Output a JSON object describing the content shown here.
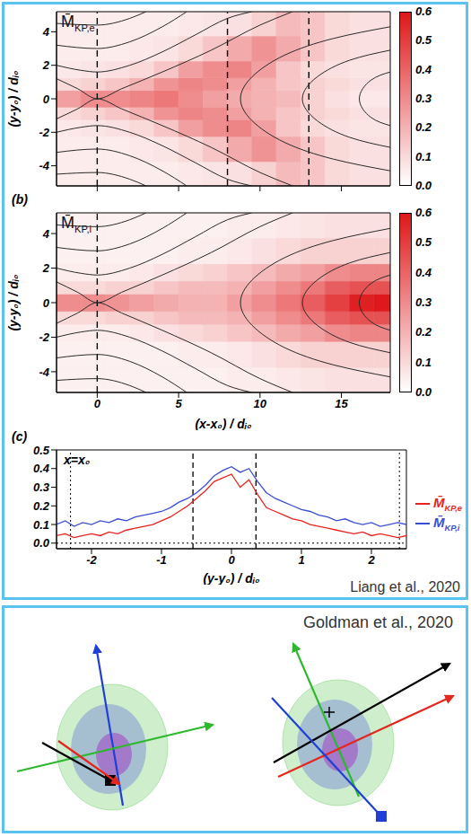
{
  "chart_data": [
    {
      "type": "heatmap",
      "label": "M̄KP,e",
      "y_label": "(y-y₀) / dᵢ₀",
      "tick_labels": "y",
      "xlim": [
        -2.5,
        18
      ],
      "ylim": [
        -5.2,
        5.2
      ],
      "xticks": [
        0,
        5,
        10,
        15
      ],
      "yticks": [
        -4,
        -2,
        0,
        2,
        4
      ],
      "x_bins": [
        -2.5,
        -1,
        0.5,
        2,
        3.5,
        5,
        6.5,
        8,
        9.5,
        11,
        12.5,
        14,
        15.5,
        17,
        18
      ],
      "y_bins": [
        -5.2,
        -3.75,
        -2.25,
        -1.25,
        -0.5,
        0.5,
        1.25,
        2.25,
        3.75,
        5.2
      ],
      "cells": [
        [
          0.05,
          0.05,
          0.05,
          0.05,
          0.05,
          0.06,
          0.07,
          0.08,
          0.12,
          0.18,
          0.15,
          0.1,
          0.08,
          0.08
        ],
        [
          0.05,
          0.05,
          0.05,
          0.06,
          0.07,
          0.1,
          0.15,
          0.22,
          0.28,
          0.22,
          0.15,
          0.1,
          0.08,
          0.08
        ],
        [
          0.06,
          0.07,
          0.08,
          0.1,
          0.15,
          0.25,
          0.3,
          0.32,
          0.25,
          0.15,
          0.1,
          0.08,
          0.07,
          0.07
        ],
        [
          0.1,
          0.12,
          0.15,
          0.2,
          0.28,
          0.32,
          0.3,
          0.25,
          0.2,
          0.15,
          0.12,
          0.1,
          0.08,
          0.08
        ],
        [
          0.25,
          0.3,
          0.3,
          0.32,
          0.35,
          0.3,
          0.25,
          0.22,
          0.2,
          0.18,
          0.12,
          0.08,
          0.06,
          0.06
        ],
        [
          0.1,
          0.12,
          0.15,
          0.2,
          0.28,
          0.32,
          0.3,
          0.25,
          0.2,
          0.15,
          0.12,
          0.1,
          0.08,
          0.08
        ],
        [
          0.06,
          0.07,
          0.08,
          0.1,
          0.15,
          0.25,
          0.3,
          0.32,
          0.25,
          0.15,
          0.1,
          0.08,
          0.07,
          0.07
        ],
        [
          0.05,
          0.05,
          0.05,
          0.06,
          0.07,
          0.1,
          0.15,
          0.22,
          0.28,
          0.22,
          0.15,
          0.1,
          0.08,
          0.08
        ],
        [
          0.05,
          0.05,
          0.05,
          0.05,
          0.05,
          0.06,
          0.07,
          0.08,
          0.12,
          0.18,
          0.15,
          0.1,
          0.08,
          0.08
        ]
      ],
      "colorbar": {
        "range": [
          0,
          0.6
        ],
        "ticks": [
          {
            "value": 0,
            "label": "0.0"
          },
          0.1,
          0.2,
          0.3,
          0.4,
          0.5,
          0.6
        ]
      },
      "dashed_x": [
        0,
        8,
        13
      ],
      "field_lines": [
        {
          "x": [
            -2.5,
            -1.2,
            0,
            1.5,
            4,
            7,
            10,
            12
          ],
          "y": [
            1.2,
            0.6,
            0,
            0.6,
            1.6,
            2.9,
            4.4,
            5.2
          ]
        },
        {
          "x": [
            -2.5,
            -1.2,
            0,
            1.5,
            4,
            7,
            10,
            12
          ],
          "y": [
            -1.2,
            -0.6,
            0,
            -0.6,
            -1.6,
            -2.9,
            -4.4,
            -5.2
          ]
        },
        {
          "x": [
            -2.5,
            -1,
            0,
            2,
            4,
            6,
            8,
            9.5
          ],
          "y": [
            2,
            1.7,
            1.6,
            2,
            2.8,
            3.8,
            4.8,
            5.2
          ]
        },
        {
          "x": [
            -2.5,
            -1,
            0,
            2,
            4,
            6,
            8,
            9.5
          ],
          "y": [
            -2,
            -1.7,
            -1.6,
            -2,
            -2.8,
            -3.8,
            -4.8,
            -5.2
          ]
        },
        {
          "x": [
            -2.5,
            0,
            2,
            4,
            5.5
          ],
          "y": [
            3.2,
            3,
            3.4,
            4.3,
            5.2
          ]
        },
        {
          "x": [
            -2.5,
            0,
            2,
            4,
            5.5
          ],
          "y": [
            -3.2,
            -3,
            -3.4,
            -4.3,
            -5.2
          ]
        },
        {
          "x": [
            -2.5,
            0,
            2,
            3
          ],
          "y": [
            4.5,
            4.4,
            4.8,
            5.2
          ]
        },
        {
          "x": [
            -2.5,
            0,
            2,
            3
          ],
          "y": [
            -4.5,
            -4.4,
            -4.8,
            -5.2
          ]
        },
        {
          "x": [
            18,
            14.5,
            11.5,
            9.5,
            8.8,
            9.5,
            11.5,
            14.5,
            18
          ],
          "y": [
            4.3,
            3.6,
            2.6,
            1.3,
            0,
            -1.3,
            -2.6,
            -3.6,
            -4.3
          ]
        },
        {
          "x": [
            18,
            15.5,
            13.5,
            12.6,
            13.5,
            15.5,
            18
          ],
          "y": [
            2.9,
            2.3,
            1.3,
            0,
            -1.3,
            -2.3,
            -2.9
          ]
        },
        {
          "x": [
            18,
            16.8,
            16.1,
            16.8,
            18
          ],
          "y": [
            1.6,
            1.1,
            0,
            -1.1,
            -1.6
          ]
        }
      ]
    },
    {
      "type": "heatmap",
      "panel": "(b)",
      "label": "M̄KP,i",
      "y_label": "(y-y₀) / dᵢ₀",
      "x_label": "(x-x₀) / dᵢ₀",
      "xlim": [
        -2.5,
        18
      ],
      "ylim": [
        -5.2,
        5.2
      ],
      "xticks": [
        0,
        5,
        10,
        15
      ],
      "yticks": [
        -4,
        -2,
        0,
        2,
        4
      ],
      "x_bins": [
        -2.5,
        -1,
        0.5,
        2,
        3.5,
        5,
        6.5,
        8,
        9.5,
        11,
        12.5,
        14,
        15.5,
        17,
        18
      ],
      "y_bins": [
        -5.2,
        -3.75,
        -2.25,
        -1.25,
        -0.5,
        0.5,
        1.25,
        2.25,
        3.75,
        5.2
      ],
      "cells": [
        [
          0.04,
          0.04,
          0.04,
          0.04,
          0.04,
          0.04,
          0.04,
          0.05,
          0.05,
          0.06,
          0.07,
          0.08,
          0.08,
          0.08
        ],
        [
          0.04,
          0.04,
          0.04,
          0.04,
          0.04,
          0.05,
          0.05,
          0.06,
          0.08,
          0.1,
          0.12,
          0.12,
          0.12,
          0.12
        ],
        [
          0.05,
          0.05,
          0.05,
          0.06,
          0.08,
          0.1,
          0.12,
          0.15,
          0.18,
          0.22,
          0.25,
          0.3,
          0.32,
          0.32
        ],
        [
          0.1,
          0.1,
          0.12,
          0.12,
          0.15,
          0.18,
          0.18,
          0.2,
          0.25,
          0.3,
          0.35,
          0.42,
          0.45,
          0.45
        ],
        [
          0.3,
          0.3,
          0.28,
          0.25,
          0.22,
          0.2,
          0.2,
          0.25,
          0.3,
          0.35,
          0.42,
          0.5,
          0.58,
          0.6
        ],
        [
          0.1,
          0.1,
          0.12,
          0.12,
          0.15,
          0.18,
          0.18,
          0.2,
          0.25,
          0.3,
          0.35,
          0.42,
          0.45,
          0.45
        ],
        [
          0.05,
          0.05,
          0.05,
          0.06,
          0.08,
          0.1,
          0.12,
          0.15,
          0.18,
          0.22,
          0.25,
          0.3,
          0.32,
          0.32
        ],
        [
          0.04,
          0.04,
          0.04,
          0.04,
          0.04,
          0.05,
          0.05,
          0.06,
          0.08,
          0.1,
          0.12,
          0.12,
          0.12,
          0.12
        ],
        [
          0.04,
          0.04,
          0.04,
          0.04,
          0.04,
          0.04,
          0.04,
          0.05,
          0.05,
          0.06,
          0.07,
          0.08,
          0.08,
          0.08
        ]
      ],
      "colorbar": {
        "range": [
          0,
          0.6
        ],
        "ticks": [
          {
            "value": 0,
            "label": "0.0"
          },
          0.1,
          0.2,
          0.3,
          0.4,
          0.5,
          0.6
        ]
      },
      "dashed_x": [
        0
      ],
      "field_lines": [
        {
          "x": [
            -2.5,
            -1.2,
            0,
            1.5,
            4,
            7,
            10,
            12
          ],
          "y": [
            1.2,
            0.6,
            0,
            0.6,
            1.6,
            2.9,
            4.4,
            5.2
          ]
        },
        {
          "x": [
            -2.5,
            -1.2,
            0,
            1.5,
            4,
            7,
            10,
            12
          ],
          "y": [
            -1.2,
            -0.6,
            0,
            -0.6,
            -1.6,
            -2.9,
            -4.4,
            -5.2
          ]
        },
        {
          "x": [
            -2.5,
            -1,
            0,
            2,
            4,
            6,
            8,
            9.5
          ],
          "y": [
            2,
            1.7,
            1.6,
            2,
            2.8,
            3.8,
            4.8,
            5.2
          ]
        },
        {
          "x": [
            -2.5,
            -1,
            0,
            2,
            4,
            6,
            8,
            9.5
          ],
          "y": [
            -2,
            -1.7,
            -1.6,
            -2,
            -2.8,
            -3.8,
            -4.8,
            -5.2
          ]
        },
        {
          "x": [
            -2.5,
            0,
            2,
            4,
            5.5
          ],
          "y": [
            3.2,
            3,
            3.4,
            4.3,
            5.2
          ]
        },
        {
          "x": [
            -2.5,
            0,
            2,
            4,
            5.5
          ],
          "y": [
            -3.2,
            -3,
            -3.4,
            -4.3,
            -5.2
          ]
        },
        {
          "x": [
            -2.5,
            0,
            2,
            3
          ],
          "y": [
            4.5,
            4.4,
            4.8,
            5.2
          ]
        },
        {
          "x": [
            -2.5,
            0,
            2,
            3
          ],
          "y": [
            -4.5,
            -4.4,
            -4.8,
            -5.2
          ]
        },
        {
          "x": [
            18,
            14.5,
            11.5,
            9.5,
            8.8,
            9.5,
            11.5,
            14.5,
            18
          ],
          "y": [
            4.3,
            3.6,
            2.6,
            1.3,
            0,
            -1.3,
            -2.6,
            -3.6,
            -4.3
          ]
        },
        {
          "x": [
            18,
            15.5,
            13.5,
            12.6,
            13.5,
            15.5,
            18
          ],
          "y": [
            2.9,
            2.3,
            1.3,
            0,
            -1.3,
            -2.3,
            -2.9
          ]
        },
        {
          "x": [
            18,
            16.8,
            16.1,
            16.8,
            18
          ],
          "y": [
            1.6,
            1.1,
            0,
            -1.1,
            -1.6
          ]
        }
      ]
    },
    {
      "type": "line",
      "panel": "(c)",
      "annotation": "x=x₀",
      "x_label": "(y-y₀) / dᵢ₀",
      "legend": "right",
      "xlim": [
        -2.5,
        2.5
      ],
      "ylim": [
        -0.03,
        0.5
      ],
      "xticks": [
        -2,
        -1,
        0,
        1,
        2
      ],
      "yticks": [
        {
          "value": 0,
          "label": "0.0"
        },
        0.1,
        0.2,
        0.3,
        0.4,
        0.5
      ],
      "dashed_x": [
        -0.55,
        0.35
      ],
      "dotted_x": [
        -2.3,
        2.4
      ],
      "dotted_y": [
        0
      ],
      "x": [
        -2.5,
        -2.375,
        -2.25,
        -2.125,
        -2,
        -1.875,
        -1.75,
        -1.625,
        -1.5,
        -1.375,
        -1.25,
        -1.125,
        -1,
        -0.875,
        -0.75,
        -0.625,
        -0.5,
        -0.375,
        -0.25,
        -0.125,
        0,
        0.125,
        0.25,
        0.375,
        0.5,
        0.625,
        0.75,
        0.875,
        1,
        1.125,
        1.25,
        1.375,
        1.5,
        1.625,
        1.75,
        1.875,
        2,
        2.125,
        2.25,
        2.375,
        2.5
      ],
      "series": [
        {
          "name": "M̄KP,e",
          "color": "#e8231d",
          "values": [
            0.04,
            0.05,
            0.03,
            0.04,
            0.05,
            0.04,
            0.06,
            0.05,
            0.07,
            0.08,
            0.09,
            0.1,
            0.12,
            0.14,
            0.17,
            0.2,
            0.24,
            0.28,
            0.33,
            0.35,
            0.37,
            0.3,
            0.34,
            0.26,
            0.19,
            0.17,
            0.15,
            0.13,
            0.12,
            0.1,
            0.09,
            0.08,
            0.07,
            0.06,
            0.05,
            0.06,
            0.04,
            0.05,
            0.04,
            0.03,
            0.04
          ]
        },
        {
          "name": "M̄KP,i",
          "color": "#3b4fd6",
          "values": [
            0.1,
            0.12,
            0.09,
            0.11,
            0.1,
            0.12,
            0.11,
            0.13,
            0.12,
            0.14,
            0.15,
            0.16,
            0.17,
            0.19,
            0.22,
            0.24,
            0.27,
            0.31,
            0.36,
            0.39,
            0.41,
            0.38,
            0.4,
            0.33,
            0.27,
            0.24,
            0.22,
            0.2,
            0.18,
            0.17,
            0.15,
            0.14,
            0.12,
            0.13,
            0.11,
            0.1,
            0.11,
            0.09,
            0.1,
            0.11,
            0.1
          ]
        }
      ]
    }
  ],
  "credits": [
    "Liang et al., 2020",
    "Goldman et al., 2020"
  ]
}
